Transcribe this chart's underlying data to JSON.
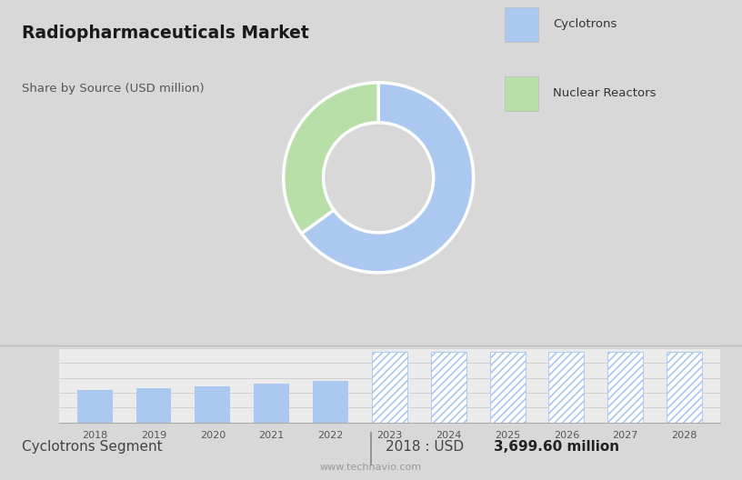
{
  "title": "Radiopharmaceuticals Market",
  "subtitle": "Share by Source (USD million)",
  "donut_values": [
    65,
    35
  ],
  "donut_labels": [
    "Cyclotrons",
    "Nuclear Reactors"
  ],
  "donut_colors": [
    "#aac8f0",
    "#b8dfa8"
  ],
  "bar_years": [
    2018,
    2019,
    2020,
    2021,
    2022
  ],
  "forecast_years": [
    2023,
    2024,
    2025,
    2026,
    2027,
    2028
  ],
  "bar_values": [
    3699.6,
    3900,
    4050,
    4350,
    4700
  ],
  "forecast_value": 8000,
  "bar_color": "#aac8f0",
  "forecast_color": "#aac8f0",
  "background_top": "#d8d8d8",
  "background_bottom": "#ebebeb",
  "footer_left": "Cyclotrons Segment",
  "footer_note": "www.technavio.com",
  "legend_labels": [
    "Cyclotrons",
    "Nuclear Reactors"
  ]
}
